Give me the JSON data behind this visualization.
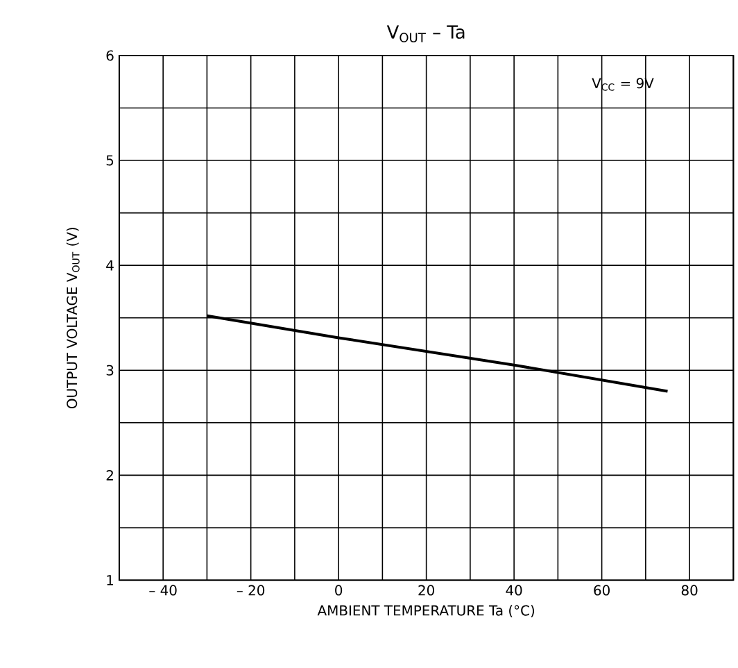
{
  "chart_data": {
    "type": "line",
    "title": "V$_{OUT}$  –  Ta",
    "xlabel": "AMBIENT TEMPERATURE    Ta    (°C)",
    "ylabel": "OUTPUT VOLTAGE    V$_{OUT}$    (V)",
    "annotations": [
      "V$_{CC}$ = 9V"
    ],
    "xlim": [
      -50,
      90
    ],
    "ylim": [
      1,
      6
    ],
    "xticks": [
      {
        "value": -50,
        "label": null
      },
      "– 40",
      {
        "value": -30,
        "label": null
      },
      "– 20",
      {
        "value": -10,
        "label": null
      },
      0,
      {
        "value": 10,
        "label": null
      },
      20,
      {
        "value": 30,
        "label": null
      },
      40,
      {
        "value": 50,
        "label": null
      },
      60,
      {
        "value": 70,
        "label": null
      },
      80,
      {
        "value": 90,
        "label": null
      }
    ],
    "yticks": [
      1,
      {
        "value": 1.5,
        "label": null
      },
      2,
      {
        "value": 2.5,
        "label": null
      },
      3,
      {
        "value": 3.5,
        "label": null
      },
      4,
      {
        "value": 4.5,
        "label": null
      },
      5,
      {
        "value": 5.5,
        "label": null
      },
      6
    ],
    "grid": true,
    "marker": "none",
    "line_style": "solid",
    "series": [
      {
        "color": "#000000",
        "x": [
          -30,
          0,
          40,
          75
        ],
        "values": [
          3.52,
          3.31,
          3.05,
          2.8
        ]
      }
    ]
  }
}
